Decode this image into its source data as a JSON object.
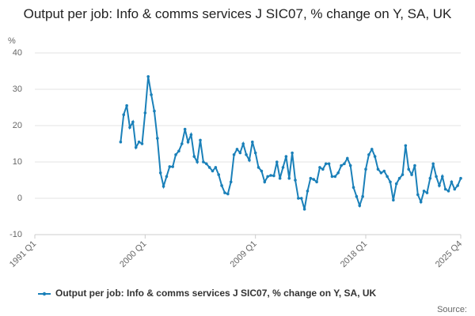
{
  "chart_data": {
    "type": "line",
    "title": "Output per job: Info & comms services J SIC07, % change on Y, SA, UK",
    "y_label": "%",
    "source": "Source:",
    "categories": [
      "1991 Q1",
      null,
      null,
      null,
      null,
      null,
      null,
      null,
      null,
      null,
      null,
      null,
      null,
      null,
      null,
      null,
      null,
      null,
      null,
      null,
      null,
      null,
      null,
      null,
      null,
      null,
      null,
      null,
      null,
      null,
      null,
      null,
      null,
      null,
      null,
      null,
      "2000 Q1",
      null,
      null,
      null,
      null,
      null,
      null,
      null,
      null,
      null,
      null,
      null,
      null,
      null,
      null,
      null,
      null,
      null,
      null,
      null,
      null,
      null,
      null,
      null,
      null,
      null,
      null,
      null,
      null,
      null,
      null,
      null,
      null,
      null,
      null,
      null,
      "2009 Q1",
      null,
      null,
      null,
      null,
      null,
      null,
      null,
      null,
      null,
      null,
      null,
      null,
      null,
      null,
      null,
      null,
      null,
      null,
      null,
      null,
      null,
      null,
      null,
      null,
      null,
      null,
      null,
      null,
      null,
      null,
      null,
      null,
      null,
      null,
      null,
      "2018 Q1",
      null,
      null,
      null,
      null,
      null,
      null,
      null,
      null,
      null,
      null,
      null,
      null,
      null,
      null,
      null,
      null,
      null,
      null,
      null,
      null,
      null,
      null,
      null,
      null,
      null,
      null,
      null,
      null,
      null,
      null,
      "2025 Q4"
    ],
    "series": [
      {
        "name": "Output per job: Info & comms services J SIC07, % change on Y, SA, UK",
        "color": "#1a80b9",
        "values": [
          null,
          null,
          null,
          null,
          null,
          null,
          null,
          null,
          null,
          null,
          null,
          null,
          null,
          null,
          null,
          null,
          null,
          null,
          null,
          null,
          null,
          null,
          null,
          null,
          null,
          null,
          null,
          null,
          15.5,
          23,
          25.5,
          19.5,
          21,
          14,
          15.5,
          15,
          23.5,
          33.5,
          28.5,
          24,
          16.5,
          7,
          3.3,
          6,
          8.7,
          8.7,
          12,
          13,
          15,
          19,
          15.5,
          17.5,
          11.5,
          10,
          16,
          10,
          9.5,
          8.5,
          7.5,
          8.5,
          6.5,
          3.5,
          1.5,
          1.2,
          4.5,
          12,
          13.5,
          12.5,
          15,
          12,
          10.5,
          15.5,
          12.5,
          8.5,
          7.5,
          4.5,
          6,
          6.3,
          6.2,
          10,
          5.5,
          8.5,
          11.5,
          5.5,
          12.5,
          5,
          0,
          0,
          -3,
          2,
          5.5,
          5.2,
          4.5,
          8.5,
          8,
          9.5,
          9.5,
          6,
          6,
          7,
          9,
          9.5,
          11,
          9,
          3,
          0.5,
          -2,
          0.5,
          8,
          12,
          13.5,
          11.5,
          8,
          7,
          7.5,
          6,
          4.5,
          -0.5,
          4,
          5.5,
          6.5,
          14.5,
          8,
          6.5,
          9,
          1,
          -1,
          2,
          1.5,
          5.5,
          9.5,
          6,
          3.5,
          6,
          2.5,
          2,
          4.5,
          2.5,
          3.5,
          5.5
        ]
      }
    ],
    "ylim": [
      -10,
      40
    ],
    "yticks": [
      -10,
      0,
      10,
      20,
      30,
      40
    ],
    "grid": true
  }
}
